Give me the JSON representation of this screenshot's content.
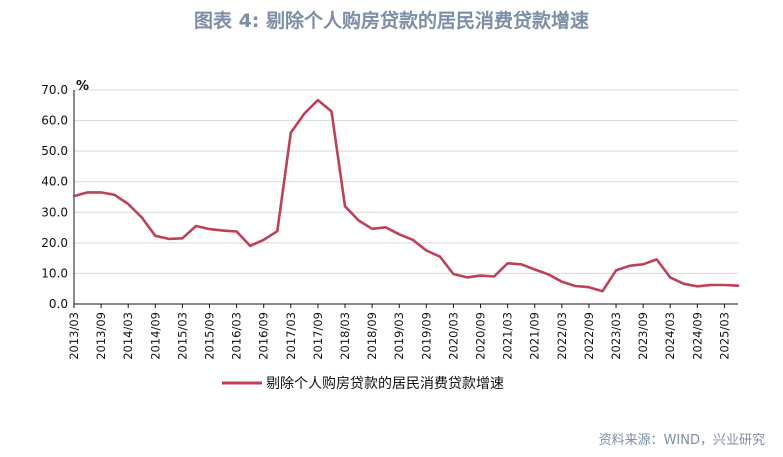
{
  "header": {
    "title": "图表 4: 剔除个人购房贷款的居民消费贷款增速"
  },
  "footer": {
    "source": "资料来源：WIND，兴业研究"
  },
  "chart_data": {
    "type": "line",
    "ylabel": "%",
    "ylim": [
      0,
      70
    ],
    "yticks": [
      "0.0",
      "10.0",
      "20.0",
      "30.0",
      "40.0",
      "50.0",
      "60.0",
      "70.0"
    ],
    "xticks": [
      "2013/03",
      "2013/09",
      "2014/03",
      "2014/09",
      "2015/03",
      "2015/09",
      "2016/03",
      "2016/09",
      "2017/03",
      "2017/09",
      "2018/03",
      "2018/09",
      "2019/03",
      "2019/09",
      "2020/03",
      "2020/09",
      "2021/03",
      "2021/09",
      "2022/03",
      "2022/09",
      "2023/03",
      "2023/09",
      "2024/03",
      "2024/09",
      "2025/03"
    ],
    "grid": true,
    "legend_position": "bottom",
    "color": "#c0405a",
    "series": [
      {
        "name": "剔除个人购房贷款的居民消费贷款增速",
        "x": [
          "2013/03",
          "2013/06",
          "2013/09",
          "2013/12",
          "2014/03",
          "2014/06",
          "2014/09",
          "2014/12",
          "2015/03",
          "2015/06",
          "2015/09",
          "2015/12",
          "2016/03",
          "2016/06",
          "2016/09",
          "2016/12",
          "2017/03",
          "2017/06",
          "2017/09",
          "2017/12",
          "2018/03",
          "2018/06",
          "2018/09",
          "2018/12",
          "2019/03",
          "2019/06",
          "2019/09",
          "2019/12",
          "2020/03",
          "2020/06",
          "2020/09",
          "2020/12",
          "2021/03",
          "2021/06",
          "2021/09",
          "2021/12",
          "2022/03",
          "2022/06",
          "2022/09",
          "2022/12",
          "2023/03",
          "2023/06",
          "2023/09",
          "2023/12",
          "2024/03",
          "2024/06",
          "2024/09",
          "2024/12",
          "2025/03",
          "2025/06"
        ],
        "values": [
          35.3,
          36.5,
          36.5,
          35.7,
          32.7,
          28.3,
          22.3,
          21.3,
          21.5,
          25.5,
          24.5,
          24.0,
          23.7,
          19.0,
          21.0,
          23.8,
          56.0,
          62.3,
          66.7,
          63.0,
          32.0,
          27.3,
          24.6,
          25.1,
          22.8,
          21.0,
          17.5,
          15.5,
          9.8,
          8.7,
          9.3,
          9.0,
          13.3,
          13.0,
          11.3,
          9.7,
          7.3,
          5.9,
          5.5,
          4.2,
          11.0,
          12.5,
          13.0,
          14.6,
          8.7,
          6.6,
          5.8,
          6.2,
          6.2,
          6.0
        ]
      }
    ]
  }
}
